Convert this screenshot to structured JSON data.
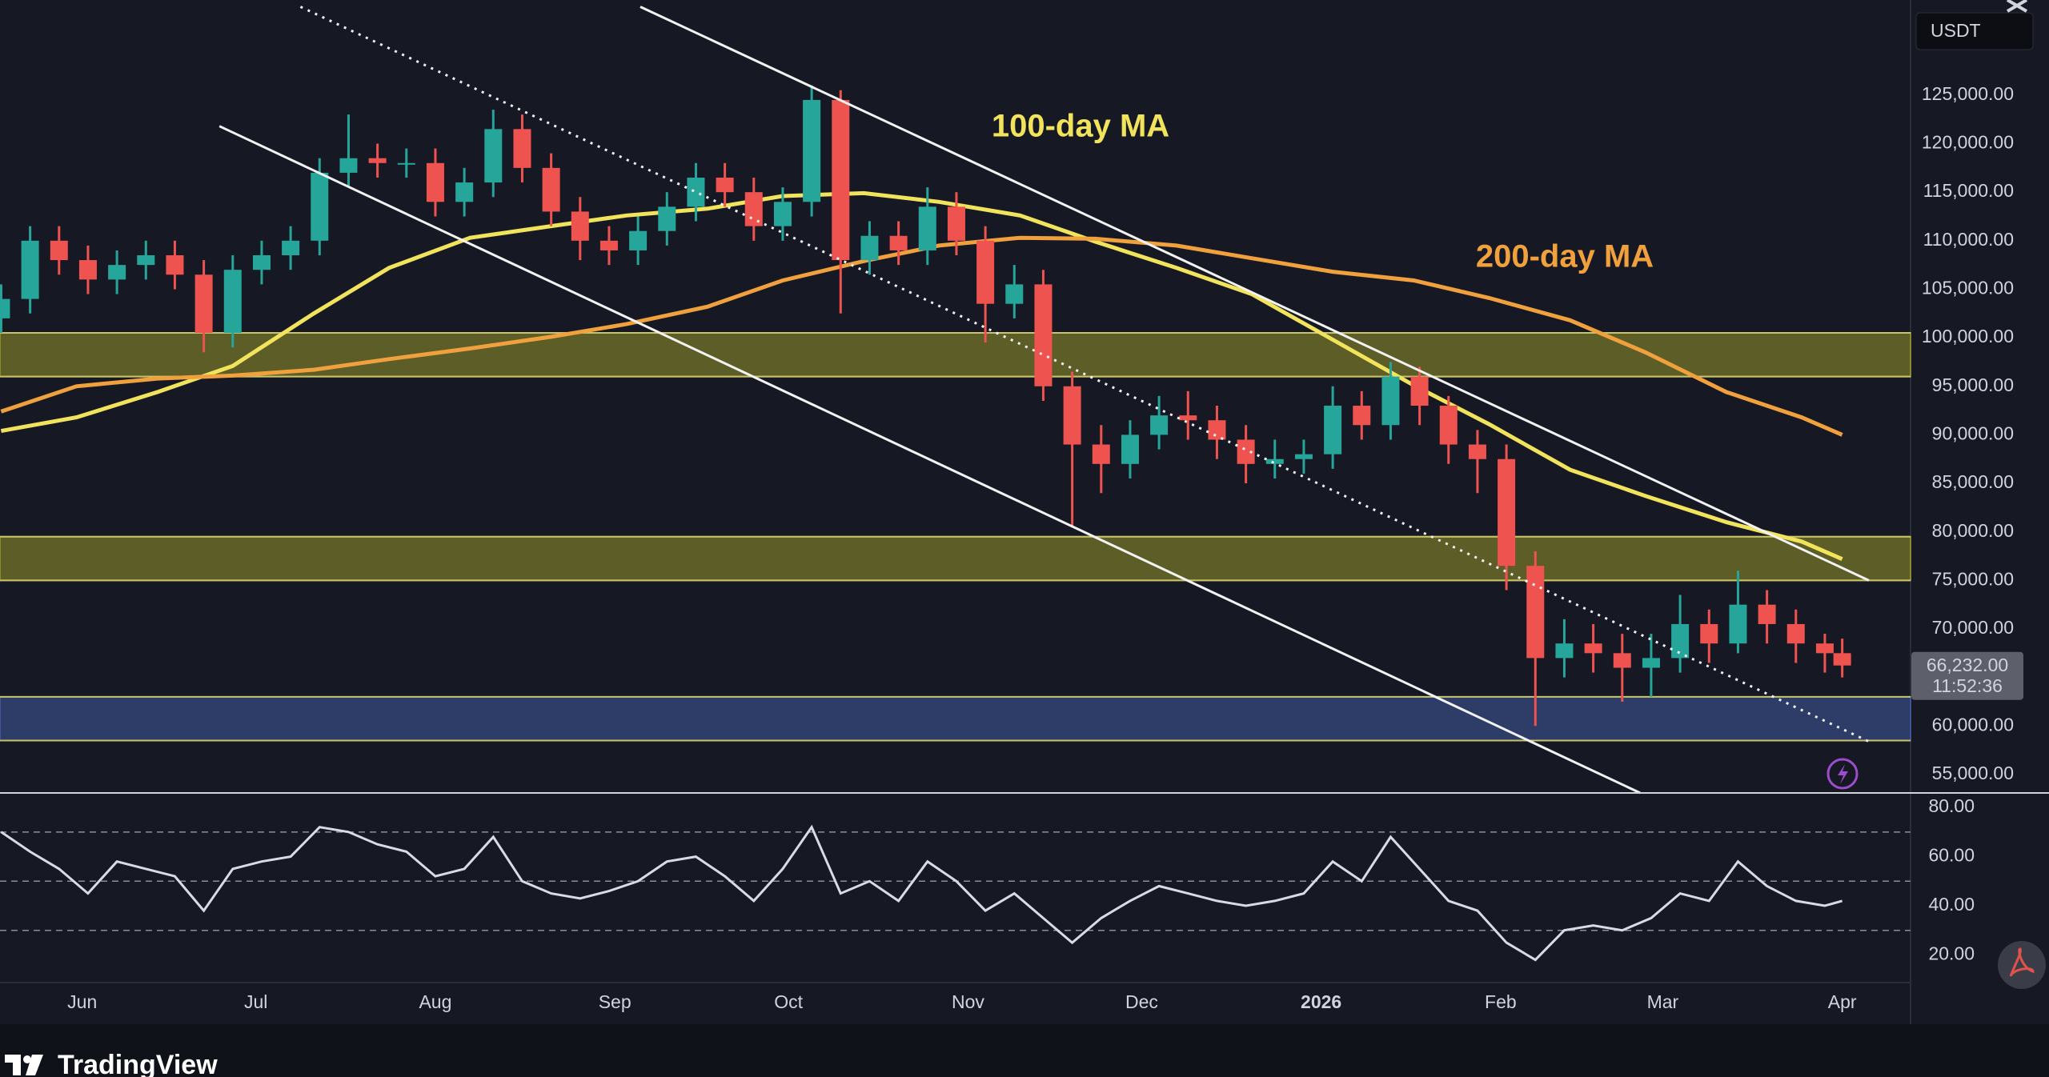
{
  "brand": "TradingView",
  "chart_data": [
    {
      "type": "candlestick",
      "unit": "USDT",
      "up_color": "#26a69a",
      "down_color": "#ef5350",
      "x": [
        -14,
        -9,
        -4,
        1,
        6,
        11,
        16,
        21,
        26,
        31,
        36,
        41,
        46,
        51,
        56,
        61,
        66,
        71,
        76,
        81,
        86,
        91,
        96,
        101,
        106,
        111,
        116,
        121,
        126,
        131,
        136,
        141,
        146,
        151,
        156,
        161,
        166,
        171,
        176,
        181,
        186,
        191,
        196,
        201,
        206,
        211,
        216,
        221,
        226,
        231,
        236,
        241,
        246,
        251,
        256,
        261,
        266,
        271,
        276,
        281,
        286,
        291,
        296,
        301,
        304
      ],
      "open": [
        102000,
        104000,
        110000,
        108000,
        106000,
        107500,
        108500,
        106500,
        100500,
        107000,
        108500,
        110000,
        117000,
        118500,
        118000,
        118000,
        114000,
        116000,
        121500,
        117500,
        113000,
        110000,
        109000,
        111000,
        113500,
        116500,
        115000,
        111500,
        114000,
        124500,
        108000,
        110500,
        109000,
        113500,
        110000,
        103500,
        105500,
        95000,
        89000,
        87000,
        90000,
        92000,
        91500,
        89500,
        87000,
        87500,
        88000,
        93000,
        91000,
        96000,
        93000,
        89000,
        87500,
        76500,
        67000,
        68500,
        67500,
        66000,
        67000,
        70500,
        68500,
        72500,
        70500,
        68500,
        67500
      ],
      "high": [
        105500,
        111500,
        111500,
        109500,
        109000,
        110000,
        110000,
        108000,
        108500,
        110000,
        111500,
        118500,
        123000,
        120000,
        119500,
        119500,
        117500,
        123500,
        123000,
        119000,
        114500,
        111500,
        112500,
        115000,
        118000,
        118000,
        116500,
        115500,
        126000,
        125500,
        112000,
        112000,
        115500,
        115000,
        111500,
        107500,
        107000,
        96500,
        91000,
        91500,
        94000,
        94500,
        93000,
        91000,
        89500,
        89500,
        95000,
        94500,
        97500,
        97000,
        94000,
        90500,
        89000,
        78000,
        71000,
        70500,
        69500,
        69500,
        73500,
        72000,
        76000,
        74000,
        72000,
        69500,
        69000
      ],
      "low": [
        100500,
        102500,
        106500,
        104500,
        104500,
        106000,
        105000,
        98500,
        99000,
        105500,
        107000,
        108500,
        115500,
        116500,
        116500,
        112500,
        112500,
        114500,
        116000,
        111500,
        108000,
        107500,
        107500,
        109500,
        112000,
        113500,
        110000,
        110000,
        112500,
        102500,
        106500,
        107500,
        107500,
        108500,
        99500,
        102000,
        93500,
        80500,
        84000,
        85500,
        88500,
        89500,
        87500,
        85000,
        85500,
        86000,
        86500,
        89500,
        89500,
        91000,
        87000,
        84000,
        74000,
        60000,
        65000,
        65500,
        62500,
        63000,
        65500,
        66500,
        67500,
        68500,
        66500,
        65500,
        65000
      ],
      "close": [
        104000,
        110000,
        108000,
        106000,
        107500,
        108500,
        106500,
        100500,
        107000,
        108500,
        110000,
        117000,
        118500,
        118000,
        118000,
        114000,
        116000,
        121500,
        117500,
        113000,
        110000,
        109000,
        111000,
        113500,
        116500,
        115000,
        111500,
        114000,
        124500,
        108000,
        110500,
        109000,
        113500,
        110000,
        103500,
        105500,
        95000,
        89000,
        87000,
        90000,
        92000,
        91500,
        89500,
        87000,
        87500,
        88000,
        93000,
        91000,
        96000,
        93000,
        89000,
        87500,
        76500,
        67000,
        68500,
        67500,
        66000,
        67000,
        70500,
        68500,
        72500,
        70500,
        68500,
        67500,
        66232
      ],
      "series": [
        {
          "name": "100-day MA",
          "color": "#f2e35c",
          "x": [
            -14,
            -1,
            13,
            26,
            40,
            53,
            67,
            81,
            94,
            108,
            121,
            135,
            148,
            162,
            175,
            189,
            202,
            216,
            230,
            243,
            257,
            270,
            284,
            297,
            304
          ],
          "values": [
            90400,
            91800,
            94400,
            97100,
            102500,
            107200,
            110300,
            111500,
            112600,
            113300,
            114600,
            114900,
            114000,
            112600,
            109900,
            107200,
            104500,
            99800,
            95100,
            91100,
            86400,
            83700,
            81000,
            79000,
            77200
          ]
        },
        {
          "name": "200-day MA",
          "color": "#f0a03c",
          "x": [
            -14,
            -1,
            13,
            26,
            40,
            53,
            67,
            81,
            94,
            108,
            121,
            135,
            148,
            162,
            175,
            189,
            202,
            216,
            230,
            243,
            257,
            270,
            284,
            297,
            304
          ],
          "values": [
            92400,
            95000,
            95800,
            96100,
            96700,
            97800,
            98900,
            100100,
            101400,
            103200,
            105900,
            107900,
            109500,
            110300,
            110200,
            109500,
            108200,
            106800,
            105900,
            104100,
            101800,
            98500,
            94400,
            91800,
            90000
          ]
        }
      ],
      "zones": [
        {
          "low": 96000,
          "high": 100500,
          "color": "#8c8a2a"
        },
        {
          "low": 75000,
          "high": 79500,
          "color": "#8c8a2a"
        },
        {
          "low": 58500,
          "high": 63000,
          "color": "#3f5596"
        }
      ],
      "trendlines": [
        {
          "x": [
            96.4,
            308.6
          ],
          "y": [
            134100,
            75000
          ],
          "style": "solid"
        },
        {
          "x": [
            37.7,
            308.6
          ],
          "y": [
            134100,
            58400
          ],
          "style": "dotted"
        },
        {
          "x": [
            23.7,
            269.1
          ],
          "y": [
            121800,
            53100
          ],
          "style": "solid"
        }
      ],
      "last_price": {
        "value": 66232,
        "label": "66,232.00"
      },
      "countdown": "11:52:36",
      "xlim": [
        -14.2,
        315.8
      ],
      "ylim": [
        53100,
        134800
      ],
      "yticks": [
        {
          "value": 125000,
          "label": "125,000.00"
        },
        {
          "value": 120000,
          "label": "120,000.00"
        },
        {
          "value": 115000,
          "label": "115,000.00"
        },
        {
          "value": 110000,
          "label": "110,000.00"
        },
        {
          "value": 105000,
          "label": "105,000.00"
        },
        {
          "value": 100000,
          "label": "100,000.00"
        },
        {
          "value": 95000,
          "label": "95,000.00"
        },
        {
          "value": 90000,
          "label": "90,000.00"
        },
        {
          "value": 85000,
          "label": "85,000.00"
        },
        {
          "value": 80000,
          "label": "80,000.00"
        },
        {
          "value": 75000,
          "label": "75,000.00"
        },
        {
          "value": 70000,
          "label": "70,000.00"
        },
        {
          "value": 65000,
          "label": "65,000.00"
        },
        {
          "value": 60000,
          "label": "60,000.00"
        },
        {
          "value": 55000,
          "label": "55,000.00"
        }
      ]
    },
    {
      "type": "line",
      "series": [
        {
          "color": "#d8dbe3",
          "x": [
            -14,
            -9,
            -4,
            1,
            6,
            11,
            16,
            21,
            26,
            31,
            36,
            41,
            46,
            51,
            56,
            61,
            66,
            71,
            76,
            81,
            86,
            91,
            96,
            101,
            106,
            111,
            116,
            121,
            126,
            131,
            136,
            141,
            146,
            151,
            156,
            161,
            166,
            171,
            176,
            181,
            186,
            191,
            196,
            201,
            206,
            211,
            216,
            221,
            226,
            231,
            236,
            241,
            246,
            251,
            256,
            261,
            266,
            271,
            276,
            281,
            286,
            291,
            296,
            301,
            304
          ],
          "values": [
            70,
            62,
            55,
            45,
            58,
            55,
            52,
            38,
            55,
            58,
            60,
            72,
            70,
            65,
            62,
            52,
            55,
            68,
            50,
            45,
            43,
            46,
            50,
            58,
            60,
            52,
            42,
            55,
            72,
            45,
            50,
            42,
            58,
            50,
            38,
            45,
            35,
            25,
            35,
            42,
            48,
            45,
            42,
            40,
            42,
            45,
            58,
            50,
            68,
            55,
            42,
            38,
            25,
            18,
            30,
            32,
            30,
            35,
            45,
            42,
            58,
            48,
            42,
            40,
            42
          ]
        }
      ],
      "levels": [
        30,
        50,
        70
      ],
      "xlim": [
        -14.2,
        315.8
      ],
      "ylim": [
        8.75,
        85.9
      ],
      "yticks": [
        {
          "value": 80,
          "label": "80.00"
        },
        {
          "value": 60,
          "label": "60.00"
        },
        {
          "value": 40,
          "label": "40.00"
        },
        {
          "value": 20,
          "label": "20.00"
        }
      ],
      "xticks": [
        {
          "value": 0,
          "label": "Jun"
        },
        {
          "value": 30,
          "label": "Jul"
        },
        {
          "value": 61,
          "label": "Aug"
        },
        {
          "value": 92,
          "label": "Sep"
        },
        {
          "value": 122,
          "label": "Oct"
        },
        {
          "value": 153,
          "label": "Nov"
        },
        {
          "value": 183,
          "label": "Dec"
        },
        {
          "value": 214,
          "label": "2026"
        },
        {
          "value": 245,
          "label": "Feb"
        },
        {
          "value": 273,
          "label": "Mar"
        },
        {
          "value": 304,
          "label": "Apr"
        }
      ]
    }
  ]
}
